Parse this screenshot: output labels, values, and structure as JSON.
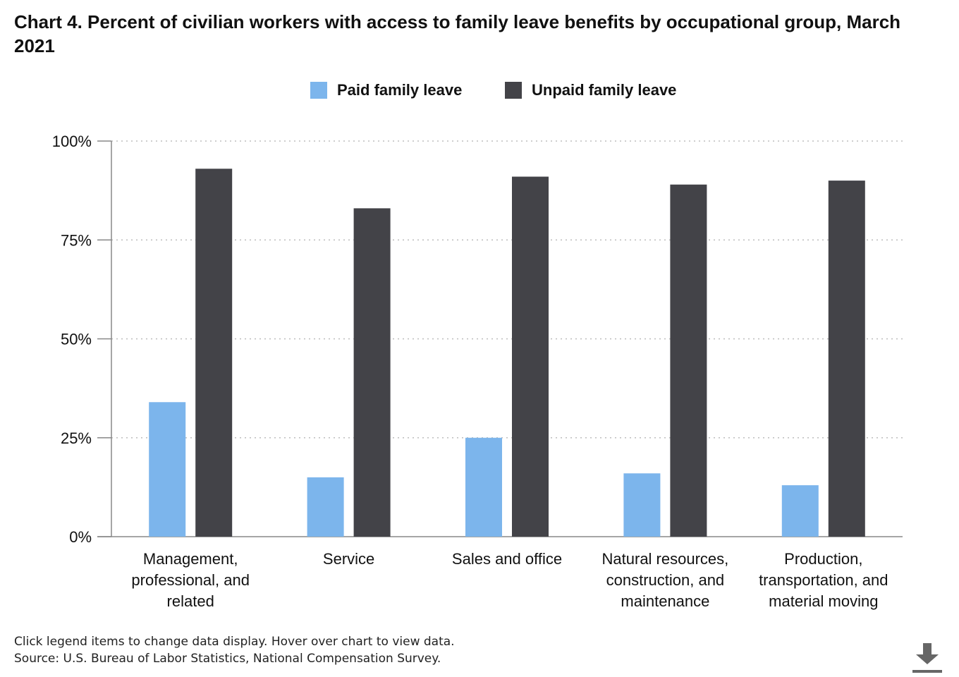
{
  "title": "Chart 4. Percent of civilian workers with access to family leave benefits by occupational group, March 2021",
  "legend": {
    "items": [
      {
        "label": "Paid family leave",
        "color": "#7cb5ec"
      },
      {
        "label": "Unpaid family leave",
        "color": "#434348"
      }
    ]
  },
  "footer": {
    "instructions": "Click legend items to change data display. Hover over chart to view data.",
    "source": "Source: U.S. Bureau of Labor Statistics, National Compensation Survey."
  },
  "icons": {
    "download": "download-icon"
  },
  "chart_data": {
    "type": "bar",
    "title": "Chart 4. Percent of civilian workers with access to family leave benefits by occupational group, March 2021",
    "xlabel": "",
    "ylabel": "",
    "ylim": [
      0,
      100
    ],
    "yticks": [
      "0%",
      "25%",
      "50%",
      "75%",
      "100%"
    ],
    "ytick_values": [
      0,
      25,
      50,
      75,
      100
    ],
    "grid": true,
    "legend_position": "top-center",
    "categories": [
      [
        "Management,",
        "professional, and",
        "related"
      ],
      [
        "Service"
      ],
      [
        "Sales and office"
      ],
      [
        "Natural resources,",
        "construction, and",
        "maintenance"
      ],
      [
        "Production,",
        "transportation, and",
        "material moving"
      ]
    ],
    "series": [
      {
        "name": "Paid family leave",
        "color": "#7cb5ec",
        "values": [
          34,
          15,
          25,
          16,
          13
        ]
      },
      {
        "name": "Unpaid family leave",
        "color": "#434348",
        "values": [
          93,
          83,
          91,
          89,
          90
        ]
      }
    ]
  }
}
